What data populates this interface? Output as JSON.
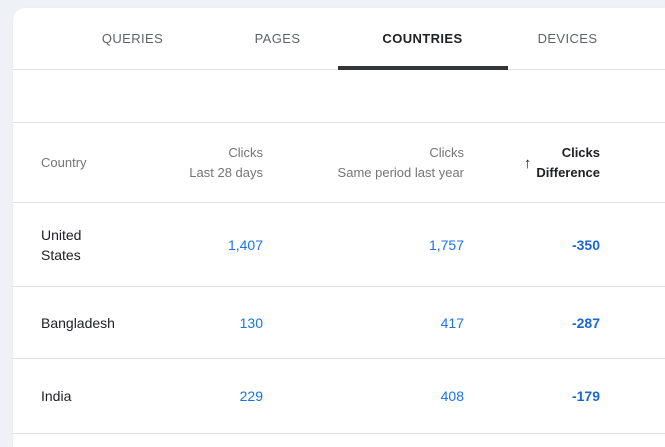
{
  "colors": {
    "background": "#eef1f6",
    "accent_blue": "#1a73e8",
    "difference_blue": "#1967d2",
    "active_tab_text": "#202124",
    "inactive_tab_text": "#5f6368",
    "active_tab_underline": "#333538",
    "divider": "#e0e0e0"
  },
  "tabs": [
    {
      "label": "QUERIES",
      "active": false
    },
    {
      "label": "PAGES",
      "active": false
    },
    {
      "label": "COUNTRIES",
      "active": true
    },
    {
      "label": "DEVICES",
      "active": false
    }
  ],
  "table": {
    "header": {
      "country": "Country",
      "clicks_last": {
        "line1": "Clicks",
        "line2": "Last 28 days"
      },
      "clicks_prev": {
        "line1": "Clicks",
        "line2": "Same period last year"
      },
      "clicks_diff": {
        "line1": "Clicks",
        "line2": "Difference"
      },
      "sort_icon_glyph": "↑"
    },
    "rows": [
      {
        "country": "United States",
        "clicks_last": "1,407",
        "clicks_prev": "1,757",
        "difference": "-350"
      },
      {
        "country": "Bangladesh",
        "clicks_last": "130",
        "clicks_prev": "417",
        "difference": "-287"
      },
      {
        "country": "India",
        "clicks_last": "229",
        "clicks_prev": "408",
        "difference": "-179"
      }
    ]
  }
}
